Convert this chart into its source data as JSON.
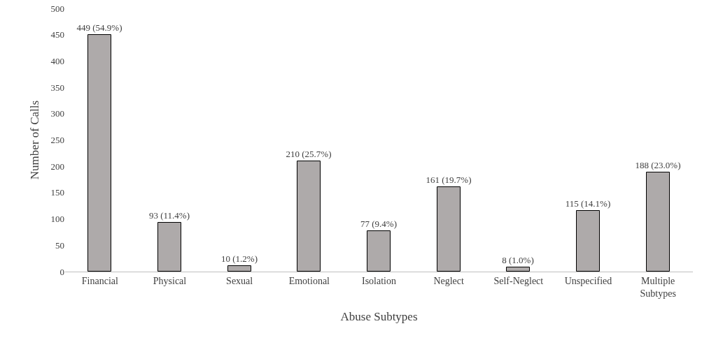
{
  "chart_data": {
    "type": "bar",
    "xlabel": "Abuse Subtypes",
    "ylabel": "Number of Calls",
    "categories": [
      "Financial",
      "Physical",
      "Sexual",
      "Emotional",
      "Isolation",
      "Neglect",
      "Self-Neglect",
      "Unspecified",
      "Multiple Subtypes"
    ],
    "values": [
      449,
      93,
      10,
      210,
      77,
      161,
      8,
      115,
      188
    ],
    "value_labels": [
      "449 (54.9%)",
      "93 (11.4%)",
      "10 (1.2%)",
      "210 (25.7%)",
      "77 (9.4%)",
      "161 (19.7%)",
      "8 (1.0%)",
      "115 (14.1%)",
      "188 (23.0%)"
    ],
    "color": "#aeaaaa",
    "ylim": [
      0,
      500
    ],
    "yticks": [
      0,
      50,
      100,
      150,
      200,
      250,
      300,
      350,
      400,
      450,
      500
    ],
    "grid": false,
    "legend": false
  }
}
